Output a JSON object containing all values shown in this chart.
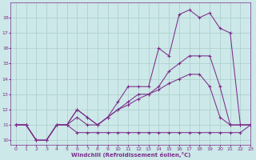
{
  "lines": [
    {
      "x": [
        0,
        1,
        2,
        3,
        4,
        5,
        6,
        7,
        8,
        9,
        10,
        11,
        12,
        13,
        14,
        15,
        16,
        17,
        18,
        19,
        20,
        21,
        22,
        23
      ],
      "y": [
        11,
        11,
        10,
        10,
        11,
        11,
        10.5,
        10.5,
        10.5,
        10.5,
        10.5,
        10.5,
        10.5,
        10.5,
        10.5,
        10.5,
        10.5,
        10.5,
        10.5,
        10.5,
        10.5,
        10.5,
        10.5,
        11
      ]
    },
    {
      "x": [
        0,
        1,
        2,
        3,
        4,
        5,
        6,
        7,
        8,
        9,
        10,
        11,
        12,
        13,
        14,
        15,
        16,
        17,
        18,
        19,
        20,
        21,
        22,
        23
      ],
      "y": [
        11,
        11,
        10,
        10,
        11,
        11,
        11.5,
        11,
        11,
        11.5,
        12,
        12.3,
        12.7,
        13,
        13.3,
        13.7,
        14,
        14.3,
        14.3,
        13.5,
        11.5,
        11,
        11,
        11
      ]
    },
    {
      "x": [
        0,
        1,
        2,
        3,
        4,
        5,
        6,
        7,
        8,
        9,
        10,
        11,
        12,
        13,
        14,
        15,
        16,
        17,
        18,
        19,
        20,
        21,
        22,
        23
      ],
      "y": [
        11,
        11,
        10,
        10,
        11,
        11,
        12,
        11.5,
        11,
        11.5,
        12,
        12.5,
        13,
        13,
        13.5,
        14.5,
        15,
        15.5,
        15.5,
        15.5,
        13.5,
        11,
        11,
        11
      ]
    },
    {
      "x": [
        0,
        1,
        2,
        3,
        4,
        5,
        6,
        7,
        8,
        9,
        10,
        11,
        12,
        13,
        14,
        15,
        16,
        17,
        18,
        19,
        20,
        21,
        22,
        23
      ],
      "y": [
        11,
        11,
        10,
        10,
        11,
        11,
        12,
        11.5,
        11,
        11.5,
        12.5,
        13.5,
        13.5,
        13.5,
        16,
        15.5,
        18.2,
        18.5,
        18,
        18.3,
        17.3,
        17,
        11,
        11
      ]
    }
  ],
  "xlim": [
    -0.5,
    23
  ],
  "ylim": [
    9.7,
    19.0
  ],
  "yticks": [
    10,
    11,
    12,
    13,
    14,
    15,
    16,
    17,
    18
  ],
  "xticks": [
    0,
    1,
    2,
    3,
    4,
    5,
    6,
    7,
    8,
    9,
    10,
    11,
    12,
    13,
    14,
    15,
    16,
    17,
    18,
    19,
    20,
    21,
    22,
    23
  ],
  "xlabel": "Windchill (Refroidissement éolien,°C)",
  "bg_color": "#cce8e8",
  "line_color": "#7b2d8b",
  "grid_color": "#aacccc"
}
